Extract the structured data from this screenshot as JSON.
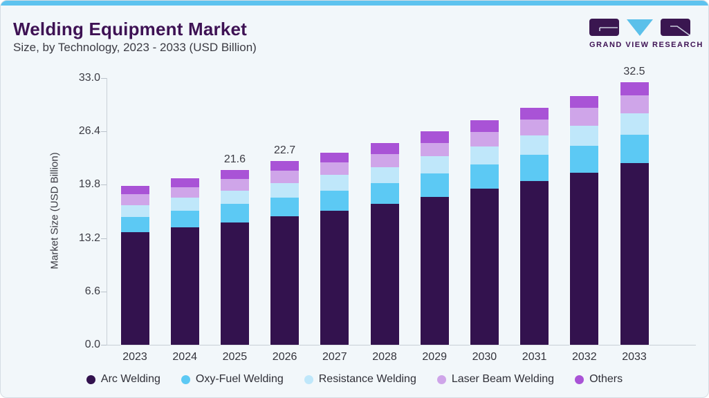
{
  "ui": {
    "accent_strip_color": "#5EC3EF",
    "card_background": "#F2F7FA",
    "card_border_color": "#D5DDE4",
    "title_color": "#3E1254",
    "axis_line_color": "#C8CFD6"
  },
  "header": {
    "title": "Welding Equipment Market",
    "subtitle": "Size, by Technology, 2023 - 2033 (USD Billion)"
  },
  "logo": {
    "text": "GRAND VIEW RESEARCH",
    "block_color": "#3A1650",
    "triangle_color": "#5BC0EA"
  },
  "chart_data": {
    "type": "bar",
    "stacked": true,
    "title": "Welding Equipment Market Size, by Technology, 2023 - 2033 (USD Billion)",
    "categories": [
      "2023",
      "2024",
      "2025",
      "2026",
      "2027",
      "2028",
      "2029",
      "2030",
      "2031",
      "2032",
      "2033"
    ],
    "series": [
      {
        "name": "Arc Welding",
        "color": "#33124E",
        "values": [
          13.9,
          14.5,
          15.1,
          15.9,
          16.6,
          17.4,
          18.3,
          19.3,
          20.3,
          21.3,
          22.5
        ]
      },
      {
        "name": "Oxy-Fuel Welding",
        "color": "#5CC9F4",
        "values": [
          1.9,
          2.1,
          2.3,
          2.3,
          2.5,
          2.6,
          2.9,
          3.0,
          3.2,
          3.3,
          3.5
        ]
      },
      {
        "name": "Resistance Welding",
        "color": "#BFE7FA",
        "values": [
          1.5,
          1.6,
          1.7,
          1.8,
          1.9,
          2.0,
          2.1,
          2.2,
          2.4,
          2.5,
          2.6
        ]
      },
      {
        "name": "Laser Beam Welding",
        "color": "#CFA5E9",
        "values": [
          1.3,
          1.3,
          1.4,
          1.5,
          1.6,
          1.6,
          1.7,
          1.8,
          2.0,
          2.2,
          2.3
        ]
      },
      {
        "name": "Others",
        "color": "#A953D6",
        "values": [
          1.1,
          1.1,
          1.1,
          1.2,
          1.2,
          1.4,
          1.4,
          1.5,
          1.4,
          1.5,
          1.6
        ]
      }
    ],
    "totals": [
      19.7,
      20.6,
      21.6,
      22.7,
      23.8,
      25.0,
      26.4,
      27.8,
      29.3,
      30.8,
      32.5
    ],
    "bar_labels": [
      "",
      "",
      "21.6",
      "22.7",
      "",
      "",
      "",
      "",
      "",
      "",
      "32.5"
    ],
    "ylabel": "Market Size (USD Billion)",
    "yticks": [
      33.0,
      26.4,
      19.8,
      13.2,
      6.6,
      0.0
    ],
    "ylim": [
      0,
      33
    ],
    "grid": false,
    "legend_position": "bottom"
  }
}
